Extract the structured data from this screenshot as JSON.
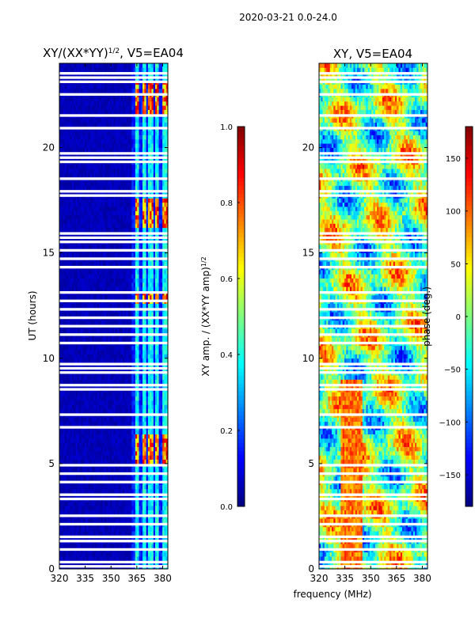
{
  "suptitle": "2020-03-21 0.0-24.0",
  "chart_data": [
    {
      "type": "heatmap",
      "title_main": "XY/(XX*YY)",
      "title_exp": "1/2",
      "title_rest": ", V5=EA04",
      "xlabel": "",
      "ylabel": "UT (hours)",
      "xlim": [
        320,
        383
      ],
      "ylim": [
        0,
        24
      ],
      "xticks": [
        "320",
        "335",
        "350",
        "365",
        "380"
      ],
      "xtick_values": [
        320,
        335,
        350,
        365,
        380
      ],
      "yticks": [
        "0",
        "5",
        "10",
        "15",
        "20"
      ],
      "ytick_values": [
        0,
        5,
        10,
        15,
        20
      ],
      "colorbar": {
        "label_main": "XY amp. / (XX*YY amp)",
        "label_exp": "1/2",
        "range": [
          0.0,
          1.0
        ],
        "ticks": [
          "0.0",
          "0.2",
          "0.4",
          "0.6",
          "0.8",
          "1.0"
        ],
        "tick_values": [
          0.0,
          0.2,
          0.4,
          0.6,
          0.8,
          1.0
        ],
        "colormap": "jet"
      }
    },
    {
      "type": "heatmap",
      "title": "XY, V5=EA04",
      "xlabel": "frequency (MHz)",
      "ylabel": "",
      "xlim": [
        320,
        383
      ],
      "ylim": [
        0,
        24
      ],
      "xticks": [
        "320",
        "335",
        "350",
        "365",
        "380"
      ],
      "xtick_values": [
        320,
        335,
        350,
        365,
        380
      ],
      "yticks": [
        "0",
        "5",
        "10",
        "15",
        "20"
      ],
      "ytick_values": [
        0,
        5,
        10,
        15,
        20
      ],
      "colorbar": {
        "label": "phase (deg.)",
        "range": [
          -180,
          180
        ],
        "ticks": [
          "−150",
          "−100",
          "−50",
          "0",
          "50",
          "100",
          "150"
        ],
        "tick_values": [
          -150,
          -100,
          -50,
          0,
          50,
          100,
          150
        ],
        "colormap": "jet"
      }
    }
  ],
  "flagged_hours": [
    0.1,
    0.25,
    0.95,
    1.35,
    1.55,
    2.05,
    2.45,
    3.35,
    3.45,
    3.55,
    4.05,
    4.45,
    4.9,
    5.6,
    6.2,
    6.75,
    7.3,
    8.0,
    8.5,
    8.6,
    8.75,
    9.25,
    9.35,
    9.45,
    9.55,
    9.65,
    10.2,
    10.7,
    11.1,
    11.5,
    11.9,
    12.3,
    12.7,
    13.1,
    13.6,
    14.0,
    14.25,
    14.7,
    15.1,
    15.45,
    15.65,
    15.75,
    15.9,
    16.6,
    17.6,
    17.75,
    17.9,
    18.4,
    18.55,
    19.0,
    19.25,
    19.5,
    19.7,
    20.4,
    20.9,
    21.45,
    21.6,
    22.2,
    22.5,
    22.8,
    23.05,
    23.3,
    23.55,
    23.8
  ],
  "rfi_channels_mhz": [
    363,
    367,
    371,
    375,
    379
  ],
  "colors": {
    "background": "#ffffff",
    "frame": "#000000",
    "flag": "#ffffff"
  }
}
